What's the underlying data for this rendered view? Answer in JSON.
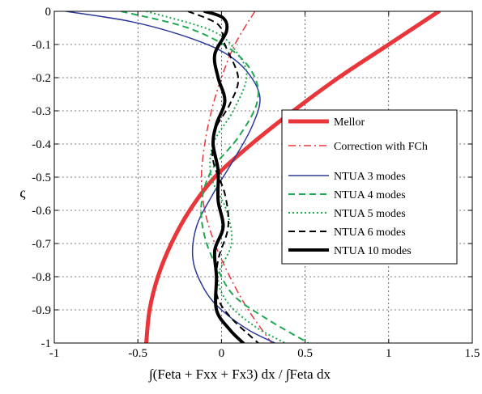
{
  "chart_data": {
    "type": "line",
    "xlabel": "∫(Feta + Fxx + Fx3) dx / ∫Feta dx",
    "ylabel": "ς",
    "xlim": [
      -1,
      1.5
    ],
    "ylim": [
      -1,
      0
    ],
    "x_ticks": [
      -1,
      -0.5,
      0,
      0.5,
      1,
      1.5
    ],
    "x_tick_labels": [
      "-1",
      "-0.5",
      "0",
      "0.5",
      "1",
      "1.5"
    ],
    "y_ticks": [
      0,
      -0.1,
      -0.2,
      -0.3,
      -0.4,
      -0.5,
      -0.6,
      -0.7,
      -0.8,
      -0.9,
      -1
    ],
    "y_tick_labels": [
      "0",
      "-0.1",
      "-0.2",
      "-0.3",
      "-0.4",
      "-0.5",
      "-0.6",
      "-0.7",
      "-0.8",
      "-0.9",
      "-1"
    ],
    "grid": true,
    "legend_position": "right",
    "series": [
      {
        "name": "Mellor",
        "color": "#e8363a",
        "dash": "solid",
        "width": 5,
        "points": [
          [
            1.3,
            0
          ],
          [
            1.0,
            -0.1
          ],
          [
            0.7,
            -0.2
          ],
          [
            0.43,
            -0.3
          ],
          [
            0.18,
            -0.4
          ],
          [
            -0.04,
            -0.5
          ],
          [
            -0.19,
            -0.6
          ],
          [
            -0.3,
            -0.7
          ],
          [
            -0.38,
            -0.8
          ],
          [
            -0.43,
            -0.9
          ],
          [
            -0.45,
            -1.0
          ]
        ]
      },
      {
        "name": "Correction with FCh",
        "color": "#e8363a",
        "dash": "dashdot",
        "width": 1.5,
        "points": [
          [
            0.2,
            0
          ],
          [
            0.08,
            -0.1
          ],
          [
            0.0,
            -0.2
          ],
          [
            -0.06,
            -0.3
          ],
          [
            -0.1,
            -0.4
          ],
          [
            -0.12,
            -0.5
          ],
          [
            -0.1,
            -0.6
          ],
          [
            -0.04,
            -0.7
          ],
          [
            0.05,
            -0.8
          ],
          [
            0.16,
            -0.9
          ],
          [
            0.3,
            -1.0
          ]
        ]
      },
      {
        "name": "NTUA 3 modes",
        "color": "#2b3a98",
        "dash": "solid",
        "width": 1.5,
        "points": [
          [
            -0.93,
            0
          ],
          [
            -0.55,
            -0.03
          ],
          [
            -0.25,
            -0.07
          ],
          [
            0.0,
            -0.12
          ],
          [
            0.15,
            -0.18
          ],
          [
            0.23,
            -0.26
          ],
          [
            0.18,
            -0.35
          ],
          [
            0.07,
            -0.45
          ],
          [
            -0.05,
            -0.55
          ],
          [
            -0.15,
            -0.65
          ],
          [
            -0.17,
            -0.75
          ],
          [
            -0.1,
            -0.84
          ],
          [
            0.0,
            -0.9
          ],
          [
            0.16,
            -0.96
          ],
          [
            0.32,
            -1.0
          ]
        ]
      },
      {
        "name": "NTUA 4 modes",
        "color": "#1fa84f",
        "dash": "dashed",
        "width": 2,
        "points": [
          [
            -0.6,
            0
          ],
          [
            -0.2,
            -0.05
          ],
          [
            0.07,
            -0.12
          ],
          [
            0.2,
            -0.2
          ],
          [
            0.21,
            -0.28
          ],
          [
            0.1,
            -0.38
          ],
          [
            -0.06,
            -0.48
          ],
          [
            -0.12,
            -0.58
          ],
          [
            -0.1,
            -0.68
          ],
          [
            -0.02,
            -0.78
          ],
          [
            0.08,
            -0.86
          ],
          [
            0.28,
            -0.93
          ],
          [
            0.52,
            -1.0
          ]
        ]
      },
      {
        "name": "NTUA 5 modes",
        "color": "#1fa84f",
        "dash": "dotted",
        "width": 2,
        "points": [
          [
            -0.45,
            0
          ],
          [
            -0.05,
            -0.06
          ],
          [
            0.1,
            -0.13
          ],
          [
            0.15,
            -0.2
          ],
          [
            0.07,
            -0.3
          ],
          [
            -0.05,
            -0.4
          ],
          [
            -0.06,
            -0.5
          ],
          [
            0.03,
            -0.6
          ],
          [
            0.06,
            -0.7
          ],
          [
            -0.02,
            -0.8
          ],
          [
            0.04,
            -0.88
          ],
          [
            0.2,
            -0.95
          ],
          [
            0.38,
            -1.0
          ]
        ]
      },
      {
        "name": "NTUA 6 modes",
        "color": "#000000",
        "dash": "dashed",
        "width": 2,
        "points": [
          [
            -0.2,
            0
          ],
          [
            -0.02,
            -0.04
          ],
          [
            0.02,
            -0.1
          ],
          [
            0.1,
            -0.2
          ],
          [
            0.05,
            -0.28
          ],
          [
            -0.04,
            -0.36
          ],
          [
            -0.05,
            -0.45
          ],
          [
            0.02,
            -0.55
          ],
          [
            0.04,
            -0.65
          ],
          [
            -0.02,
            -0.75
          ],
          [
            -0.03,
            -0.85
          ],
          [
            0.05,
            -0.92
          ],
          [
            0.22,
            -1.0
          ]
        ]
      },
      {
        "name": "NTUA 10 modes",
        "color": "#000000",
        "dash": "solid",
        "width": 4,
        "points": [
          [
            -0.1,
            0
          ],
          [
            0.01,
            -0.02
          ],
          [
            0.03,
            -0.06
          ],
          [
            -0.04,
            -0.13
          ],
          [
            -0.02,
            -0.2
          ],
          [
            0.02,
            -0.27
          ],
          [
            -0.03,
            -0.34
          ],
          [
            -0.05,
            -0.4
          ],
          [
            -0.02,
            -0.48
          ],
          [
            -0.02,
            -0.57
          ],
          [
            0.01,
            -0.65
          ],
          [
            -0.04,
            -0.72
          ],
          [
            -0.03,
            -0.8
          ],
          [
            -0.03,
            -0.9
          ],
          [
            0.05,
            -0.96
          ],
          [
            0.13,
            -1.0
          ]
        ]
      }
    ]
  }
}
